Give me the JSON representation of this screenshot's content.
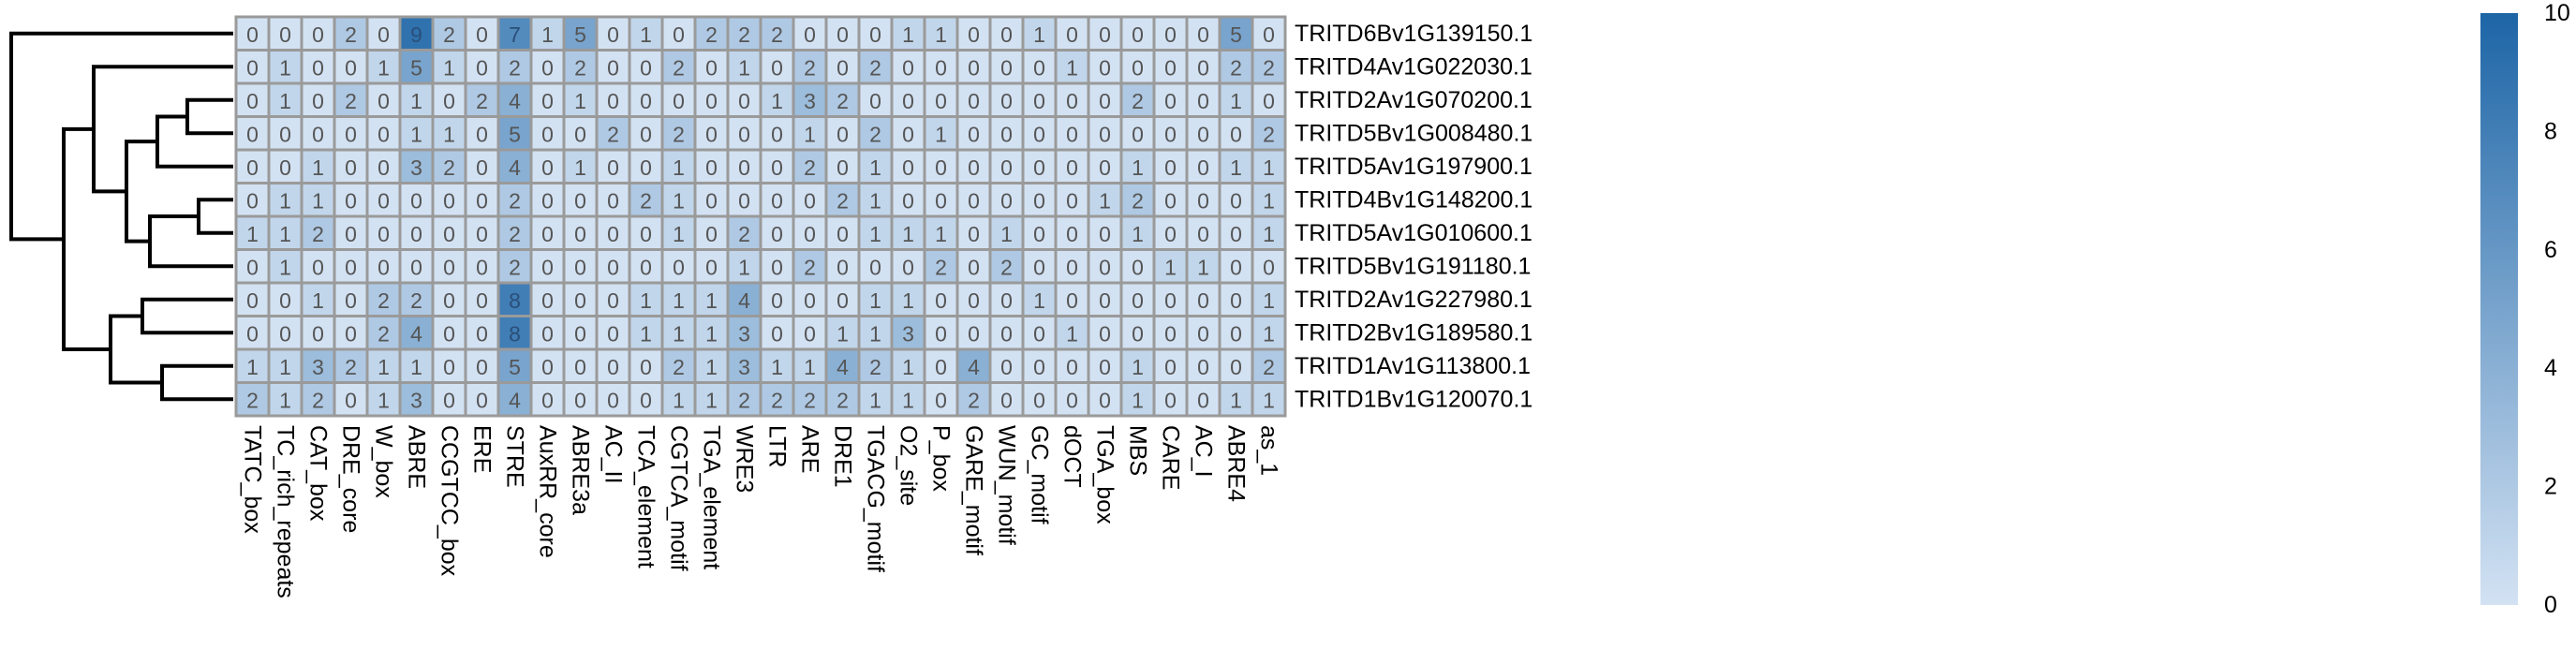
{
  "chart_data": {
    "type": "heatmap",
    "columns": [
      "TATC_box",
      "TC_rich_repeats",
      "CAT_box",
      "DRE_core",
      "W_box",
      "ABRE",
      "CCGTCC_box",
      "ERE",
      "STRE",
      "AuxRR_core",
      "ABRE3a",
      "AC_II",
      "TCA_element",
      "CGTCA_motif",
      "TGA_element",
      "WRE3",
      "LTR",
      "ARE",
      "DRE1",
      "TGACG_motif",
      "O2_site",
      "P_box",
      "GARE_motif",
      "WUN_motif",
      "GC_motif",
      "dOCT",
      "TGA_box",
      "MBS",
      "CARE",
      "AC_I",
      "ABRE4",
      "as_1"
    ],
    "rows": [
      "TRITD6Bv1G139150.1",
      "TRITD4Av1G022030.1",
      "TRITD2Av1G070200.1",
      "TRITD5Bv1G008480.1",
      "TRITD5Av1G197900.1",
      "TRITD4Bv1G148200.1",
      "TRITD5Av1G010600.1",
      "TRITD5Bv1G191180.1",
      "TRITD2Av1G227980.1",
      "TRITD2Bv1G189580.1",
      "TRITD1Av1G113800.1",
      "TRITD1Bv1G120070.1"
    ],
    "values": [
      [
        0,
        0,
        0,
        2,
        0,
        9,
        2,
        0,
        7,
        1,
        5,
        0,
        1,
        0,
        2,
        2,
        2,
        0,
        0,
        0,
        1,
        1,
        0,
        0,
        1,
        0,
        0,
        0,
        0,
        0,
        5,
        0
      ],
      [
        0,
        1,
        0,
        0,
        1,
        5,
        1,
        0,
        2,
        0,
        2,
        0,
        0,
        2,
        0,
        1,
        0,
        2,
        0,
        2,
        0,
        0,
        0,
        0,
        0,
        1,
        0,
        0,
        0,
        0,
        2,
        2
      ],
      [
        0,
        1,
        0,
        2,
        0,
        1,
        0,
        2,
        4,
        0,
        1,
        0,
        0,
        0,
        0,
        0,
        1,
        3,
        2,
        0,
        0,
        0,
        0,
        0,
        0,
        0,
        0,
        2,
        0,
        0,
        1,
        0
      ],
      [
        0,
        0,
        0,
        0,
        0,
        1,
        1,
        0,
        5,
        0,
        0,
        2,
        0,
        2,
        0,
        0,
        0,
        1,
        0,
        2,
        0,
        1,
        0,
        0,
        0,
        0,
        0,
        0,
        0,
        0,
        0,
        2
      ],
      [
        0,
        0,
        1,
        0,
        0,
        3,
        2,
        0,
        4,
        0,
        1,
        0,
        0,
        1,
        0,
        0,
        0,
        2,
        0,
        1,
        0,
        0,
        0,
        0,
        0,
        0,
        0,
        1,
        0,
        0,
        1,
        1
      ],
      [
        0,
        1,
        1,
        0,
        0,
        0,
        0,
        0,
        2,
        0,
        0,
        0,
        2,
        1,
        0,
        0,
        0,
        0,
        2,
        1,
        0,
        0,
        0,
        0,
        0,
        0,
        1,
        2,
        0,
        0,
        0,
        1
      ],
      [
        1,
        1,
        2,
        0,
        0,
        0,
        0,
        0,
        2,
        0,
        0,
        0,
        0,
        1,
        0,
        2,
        0,
        0,
        0,
        1,
        1,
        1,
        0,
        1,
        0,
        0,
        0,
        1,
        0,
        0,
        0,
        1
      ],
      [
        0,
        1,
        0,
        0,
        0,
        0,
        0,
        0,
        2,
        0,
        0,
        0,
        0,
        0,
        0,
        1,
        0,
        2,
        0,
        0,
        0,
        2,
        0,
        2,
        0,
        0,
        0,
        0,
        1,
        1,
        0,
        0
      ],
      [
        0,
        0,
        1,
        0,
        2,
        2,
        0,
        0,
        8,
        0,
        0,
        0,
        1,
        1,
        1,
        4,
        0,
        0,
        0,
        1,
        1,
        0,
        0,
        0,
        1,
        0,
        0,
        0,
        0,
        0,
        0,
        1
      ],
      [
        0,
        0,
        0,
        0,
        2,
        4,
        0,
        0,
        8,
        0,
        0,
        0,
        1,
        1,
        1,
        3,
        0,
        0,
        1,
        1,
        3,
        0,
        0,
        0,
        0,
        1,
        0,
        0,
        0,
        0,
        0,
        1
      ],
      [
        1,
        1,
        3,
        2,
        1,
        1,
        0,
        0,
        5,
        0,
        0,
        0,
        0,
        2,
        1,
        3,
        1,
        1,
        4,
        2,
        1,
        0,
        4,
        0,
        0,
        0,
        0,
        1,
        0,
        0,
        0,
        2
      ],
      [
        2,
        1,
        2,
        0,
        1,
        3,
        0,
        0,
        4,
        0,
        0,
        0,
        0,
        1,
        1,
        2,
        2,
        2,
        2,
        1,
        1,
        0,
        2,
        0,
        0,
        0,
        0,
        1,
        0,
        0,
        1,
        1
      ]
    ],
    "colorbar": {
      "min": 0,
      "max": 10,
      "ticks": [
        0,
        2,
        4,
        6,
        8,
        10
      ]
    },
    "colors": {
      "low": "#d3e2f3",
      "high": "#1d65a6",
      "border": "#9a9a9a",
      "text_dark": "#555555",
      "text_light": "#2a4f7a"
    },
    "row_dendrogram": true
  }
}
